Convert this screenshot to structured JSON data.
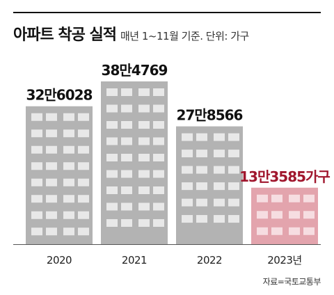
{
  "header": {
    "title": "아파트 착공 실적",
    "subtitle": "매년 1~11월 기준. 단위: 가구"
  },
  "source": "자료=국토교통부",
  "colors": {
    "building": "#b3b3b3",
    "window": "#e8e8e8",
    "highlight_building": "#e3a4ad",
    "highlight_window": "#f6dde1",
    "highlight_label": "#a0162d",
    "label": "#111111"
  },
  "chart_data": {
    "type": "bar",
    "title": "아파트 착공 실적",
    "subtitle": "매년 1~11월 기준. 단위: 가구",
    "categories": [
      "2020",
      "2021",
      "2022",
      "2023년"
    ],
    "values": [
      326028,
      384769,
      278566,
      133585
    ],
    "data_labels": [
      "32만6028",
      "38만4769",
      "27만8566",
      "13만3585가구"
    ],
    "highlight_index": 3,
    "ylim": [
      0,
      384769
    ],
    "grid": false,
    "legend": "none"
  }
}
